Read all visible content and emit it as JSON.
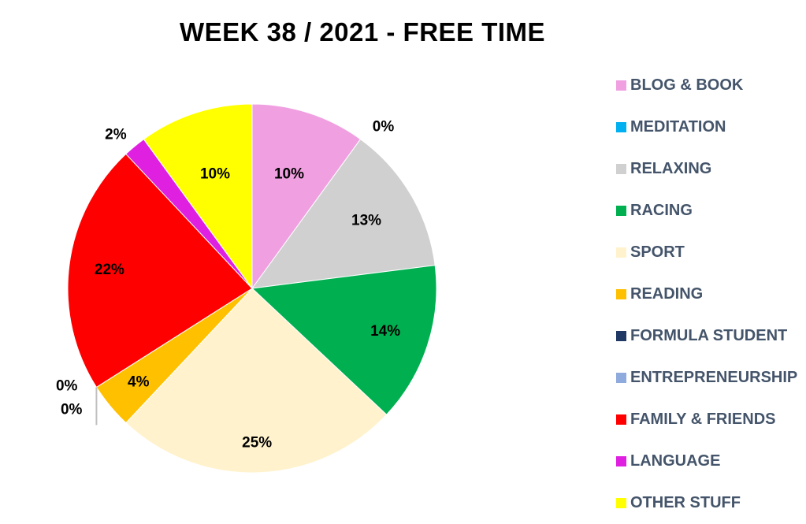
{
  "chart_data": {
    "type": "pie",
    "title": "WEEK 38 / 2021 - FREE TIME",
    "legend_position": "right",
    "slices": [
      {
        "label": "BLOG & BOOK",
        "value": 10,
        "pct_label": "10%",
        "color": "#f0a0e0"
      },
      {
        "label": "MEDITATION",
        "value": 0,
        "pct_label": "0%",
        "color": "#00b0f0"
      },
      {
        "label": "RELAXING",
        "value": 13,
        "pct_label": "13%",
        "color": "#d0d0d0"
      },
      {
        "label": "RACING",
        "value": 14,
        "pct_label": "14%",
        "color": "#00b050"
      },
      {
        "label": "SPORT",
        "value": 25,
        "pct_label": "25%",
        "color": "#fff2cc"
      },
      {
        "label": "READING",
        "value": 4,
        "pct_label": "4%",
        "color": "#ffc000"
      },
      {
        "label": "FORMULA STUDENT",
        "value": 0,
        "pct_label": "0%",
        "color": "#1f3864"
      },
      {
        "label": "ENTREPRENEURSHIP",
        "value": 0,
        "pct_label": "0%",
        "color": "#8faadc"
      },
      {
        "label": "FAMILY & FRIENDS",
        "value": 22,
        "pct_label": "22%",
        "color": "#ff0000"
      },
      {
        "label": "LANGUAGE",
        "value": 2,
        "pct_label": "2%",
        "color": "#e020e0"
      },
      {
        "label": "OTHER STUFF",
        "value": 10,
        "pct_label": "10%",
        "color": "#ffff00"
      }
    ]
  }
}
